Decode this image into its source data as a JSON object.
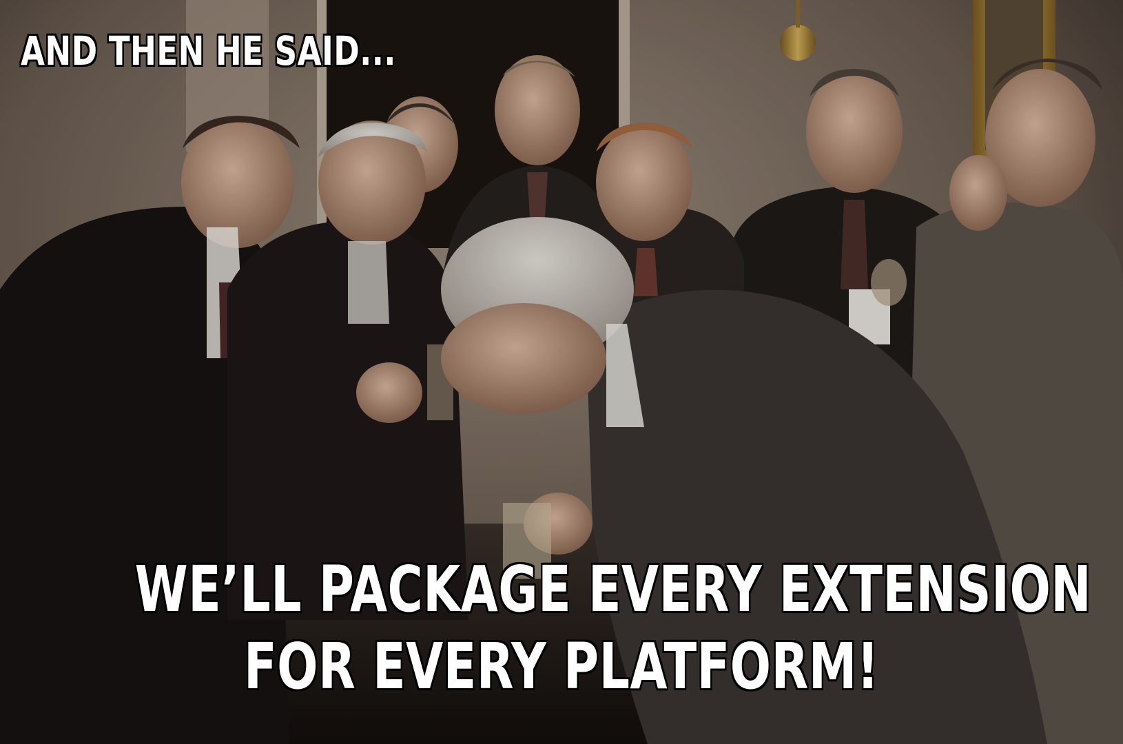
{
  "meme": {
    "top_text": "AND THEN HE SAID...",
    "bottom_text_line1": "WE’LL PACKAGE EVERY EXTENSION",
    "bottom_text_line2": "FOR EVERY PLATFORM!"
  },
  "colors": {
    "text": "#ffffff",
    "text_outline": "#000000"
  }
}
